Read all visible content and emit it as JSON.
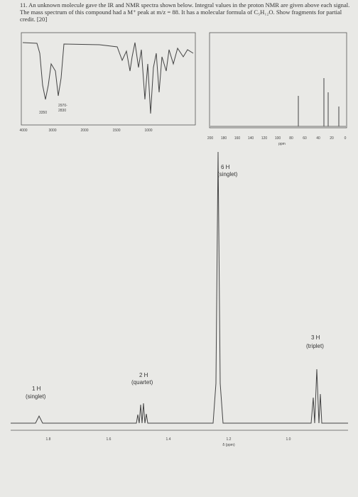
{
  "question": {
    "number": "11.",
    "text": "An unknown molecule gave the IR and NMR spectra shown below. Integral values in the proton NMR are given above each signal. The mass spectrum of this compound had a M⁺ peak at m/z = 88. It has a molecular formula of C₅H₁₂O. Show fragments for partial credit. [20]"
  },
  "ir_spectrum": {
    "peak_labels": [
      "3350",
      "2970-",
      "2830"
    ],
    "axis_ticks": [
      "4000",
      "3000",
      "2000",
      "1500",
      "1000"
    ]
  },
  "c13_spectrum": {
    "axis_ticks": [
      "200",
      "180",
      "160",
      "140",
      "120",
      "100",
      "80",
      "60",
      "40",
      "20",
      "0"
    ],
    "axis_label": "ppm"
  },
  "h1_spectrum": {
    "signals": [
      {
        "integral": "6 H",
        "multiplicity": "(singlet)"
      },
      {
        "integral": "3 H",
        "multiplicity": "(triplet)"
      },
      {
        "integral": "2 H",
        "multiplicity": "(quartet)"
      },
      {
        "integral": "1 H",
        "multiplicity": "(singlet)"
      }
    ],
    "axis_ticks": [
      "1.8",
      "1.6",
      "1.4",
      "1.2",
      "1.0"
    ],
    "axis_label": "δ (ppm)"
  }
}
